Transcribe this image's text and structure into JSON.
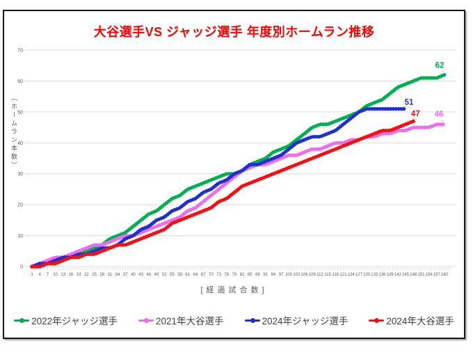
{
  "title": {
    "text": "大谷選手VS ジャッジ選手 年度別ホームラン推移",
    "color": "#ff0000"
  },
  "chart_data": {
    "type": "line",
    "title": "大谷選手VS ジャッジ選手 年度別ホームラン推移",
    "xlabel": "[経過試合数]",
    "ylabel": "〔ホームラン本数〕",
    "ylim": [
      0,
      70
    ],
    "y_ticks": [
      0,
      10,
      20,
      30,
      40,
      50,
      60,
      70
    ],
    "grid": "horizontal-light",
    "legend_position": "bottom",
    "x_games": [
      1,
      4,
      7,
      10,
      13,
      16,
      19,
      22,
      25,
      28,
      31,
      34,
      37,
      40,
      43,
      46,
      49,
      52,
      55,
      58,
      61,
      64,
      67,
      70,
      73,
      76,
      79,
      82,
      85,
      88,
      91,
      94,
      97,
      100,
      103,
      106,
      109,
      112,
      115,
      118,
      121,
      124,
      127,
      130,
      133,
      136,
      139,
      142,
      145,
      148,
      151,
      154,
      157,
      160
    ],
    "series": [
      {
        "name": "2022年ジャッジ選手",
        "color": "#00b050",
        "final_value": 62,
        "final_label": "62",
        "values": [
          0,
          1,
          1,
          1,
          2,
          3,
          4,
          5,
          6,
          7,
          9,
          10,
          11,
          13,
          15,
          17,
          18,
          20,
          22,
          23,
          25,
          26,
          27,
          28,
          29,
          30,
          30,
          31,
          33,
          34,
          35,
          37,
          38,
          39,
          41,
          43,
          45,
          46,
          46,
          47,
          48,
          49,
          50,
          52,
          53,
          54,
          56,
          58,
          59,
          60,
          61,
          61,
          61,
          62
        ]
      },
      {
        "name": "2021年大谷選手",
        "color": "#ee6cee",
        "final_value": 46,
        "final_label": "46",
        "values": [
          0,
          1,
          2,
          3,
          3,
          4,
          5,
          6,
          7,
          7,
          8,
          9,
          10,
          10,
          11,
          12,
          13,
          14,
          15,
          16,
          18,
          19,
          21,
          23,
          25,
          27,
          29,
          31,
          32,
          33,
          33,
          34,
          35,
          36,
          36,
          37,
          38,
          38,
          39,
          40,
          40,
          41,
          41,
          42,
          42,
          43,
          43,
          44,
          44,
          45,
          45,
          45,
          46,
          46
        ]
      },
      {
        "name": "2024年ジャッジ選手",
        "color": "#2030d0",
        "final_value": 51,
        "final_label": "51",
        "values": [
          0,
          1,
          1,
          2,
          3,
          3,
          4,
          4,
          5,
          6,
          6,
          7,
          9,
          10,
          12,
          13,
          15,
          16,
          18,
          19,
          21,
          22,
          24,
          25,
          27,
          28,
          30,
          31,
          33,
          33,
          34,
          35,
          36,
          38,
          40,
          41,
          42,
          42,
          43,
          44,
          46,
          48,
          50,
          51,
          51,
          51,
          51,
          51,
          51,
          null,
          null,
          null,
          null,
          null
        ]
      },
      {
        "name": "2024年大谷選手",
        "color": "#f50f10",
        "final_value": 47,
        "final_label": "47",
        "values": [
          0,
          0,
          1,
          1,
          2,
          3,
          3,
          4,
          4,
          5,
          6,
          7,
          7,
          8,
          9,
          10,
          11,
          12,
          14,
          15,
          16,
          17,
          18,
          19,
          21,
          22,
          24,
          26,
          27,
          28,
          29,
          30,
          31,
          32,
          33,
          34,
          35,
          36,
          37,
          38,
          39,
          40,
          41,
          42,
          43,
          44,
          44,
          45,
          46,
          47,
          null,
          null,
          null,
          null
        ]
      }
    ]
  },
  "legend": {
    "items": [
      {
        "label": "2022年ジャッジ選手",
        "color": "#00b050"
      },
      {
        "label": "2021年大谷選手",
        "color": "#ee6cee"
      },
      {
        "label": "2024年ジャッジ選手",
        "color": "#2030d0"
      },
      {
        "label": "2024年大谷選手",
        "color": "#f50f10"
      }
    ]
  },
  "style_colors": {
    "grid": "#d9d9d9",
    "tick": "#c9c9c9",
    "axis_text": "#595959",
    "leader": "#bfbfbf"
  }
}
